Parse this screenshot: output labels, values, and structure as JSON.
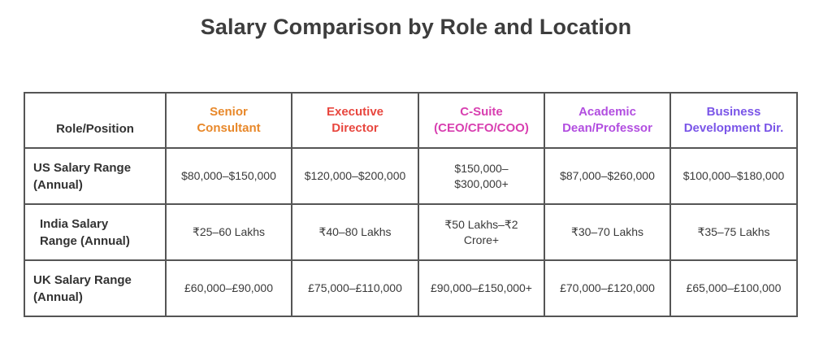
{
  "title": "Salary Comparison by Role and Location",
  "colors": {
    "senior_consultant": "#e8882a",
    "executive_director": "#e8473f",
    "c_suite": "#d83fb0",
    "academic": "#b24ee0",
    "business_dev": "#7a55e8"
  },
  "table": {
    "corner_header": "Role/Position",
    "columns": [
      {
        "line1": "Senior",
        "line2": "Consultant"
      },
      {
        "line1": "Executive",
        "line2": "Director"
      },
      {
        "line1": "C-Suite",
        "line2": "(CEO/CFO/COO)"
      },
      {
        "line1": "Academic",
        "line2": "Dean/Professor"
      },
      {
        "line1": "Business",
        "line2": "Development Dir."
      }
    ],
    "rows": [
      {
        "label_line1": "US Salary Range",
        "label_line2": "(Annual)",
        "cells": [
          {
            "line1": "$80,000–$150,000",
            "line2": ""
          },
          {
            "line1": "$120,000–$200,000",
            "line2": ""
          },
          {
            "line1": "$150,000–",
            "line2": "$300,000+"
          },
          {
            "line1": "$87,000–$260,000",
            "line2": ""
          },
          {
            "line1": "$100,000–$180,000",
            "line2": ""
          }
        ]
      },
      {
        "label_line1": "India Salary",
        "label_line2": "Range (Annual)",
        "cells": [
          {
            "line1": "₹25–60 Lakhs",
            "line2": ""
          },
          {
            "line1": "₹40–80 Lakhs",
            "line2": ""
          },
          {
            "line1": "₹50 Lakhs–₹2",
            "line2": "Crore+"
          },
          {
            "line1": "₹30–70 Lakhs",
            "line2": ""
          },
          {
            "line1": "₹35–75 Lakhs",
            "line2": ""
          }
        ]
      },
      {
        "label_line1": "UK Salary Range",
        "label_line2": "(Annual)",
        "cells": [
          {
            "line1": "£60,000–£90,000",
            "line2": ""
          },
          {
            "line1": "£75,000–£110,000",
            "line2": ""
          },
          {
            "line1": "£90,000–£150,000+",
            "line2": ""
          },
          {
            "line1": "£70,000–£120,000",
            "line2": ""
          },
          {
            "line1": "£65,000–£100,000",
            "line2": ""
          }
        ]
      }
    ]
  }
}
